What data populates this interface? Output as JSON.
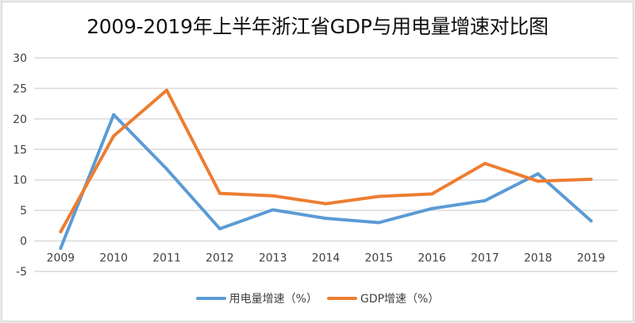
{
  "chart_data": {
    "type": "line",
    "title": "2009-2019年上半年浙江省GDP与用电量增速对比图",
    "xlabel": "",
    "ylabel": "",
    "categories": [
      "2009",
      "2010",
      "2011",
      "2012",
      "2013",
      "2014",
      "2015",
      "2016",
      "2017",
      "2018",
      "2019"
    ],
    "ylim": [
      -5,
      30
    ],
    "yticks": [
      30,
      25,
      20,
      15,
      10,
      5,
      0,
      -5
    ],
    "grid": true,
    "legend_position": "bottom",
    "series": [
      {
        "name": "用电量增速（%）",
        "color": "#5b9bd5",
        "values": [
          -1.2,
          20.7,
          11.8,
          2.0,
          5.1,
          3.7,
          3.0,
          5.3,
          6.6,
          11.0,
          3.3
        ]
      },
      {
        "name": "GDP增速（%）",
        "color": "#ed7d31",
        "values": [
          1.5,
          17.2,
          24.7,
          7.8,
          7.4,
          6.1,
          7.3,
          7.7,
          12.7,
          9.8,
          10.1
        ]
      }
    ]
  }
}
